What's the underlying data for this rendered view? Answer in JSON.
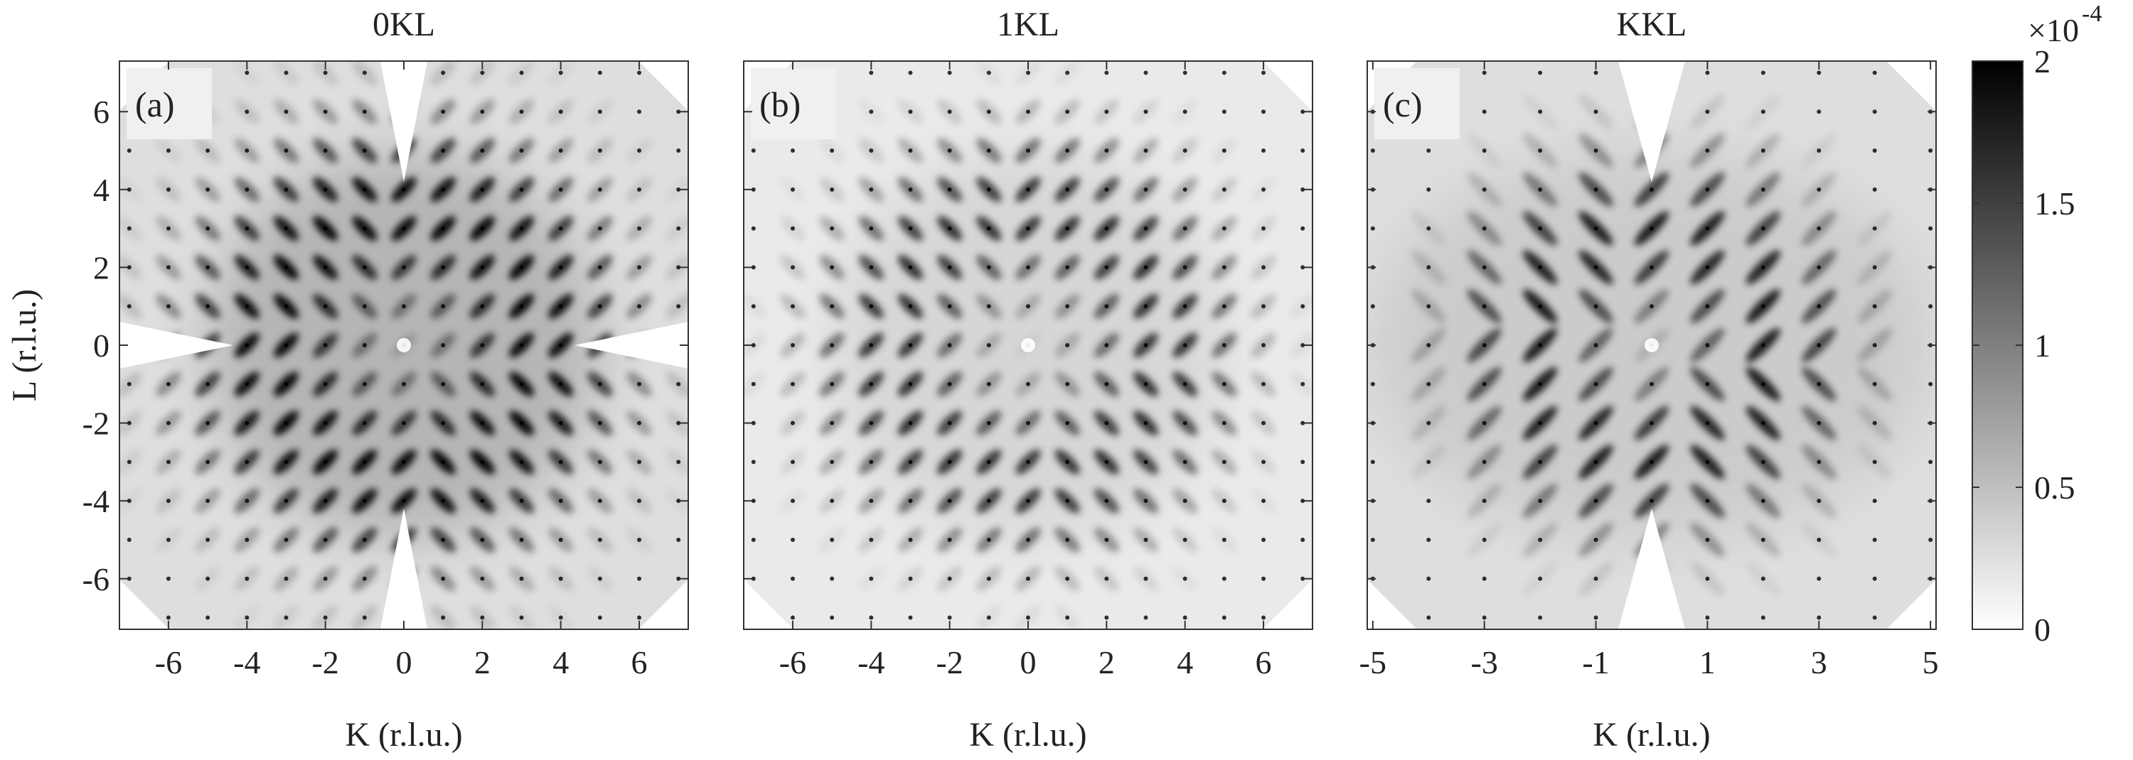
{
  "chart_data": [
    {
      "type": "heatmap",
      "title": "0KL",
      "panel_label": "(a)",
      "xlabel": "K (r.l.u.)",
      "ylabel": "L (r.l.u.)",
      "xlim": [
        -7.25,
        7.25
      ],
      "xticks": [
        -6,
        -4,
        -2,
        0,
        2,
        4,
        6
      ],
      "ylim": [
        -7.3,
        7.3
      ],
      "yticks": [
        -6,
        -4,
        -2,
        0,
        2,
        4,
        6
      ]
    },
    {
      "type": "heatmap",
      "title": "1KL",
      "panel_label": "(b)",
      "xlabel": "K (r.l.u.)",
      "xlim": [
        -7.25,
        7.25
      ],
      "xticks": [
        -6,
        -4,
        -2,
        0,
        2,
        4,
        6
      ],
      "ylim": [
        -7.3,
        7.3
      ]
    },
    {
      "type": "heatmap",
      "title": "KKL",
      "panel_label": "(c)",
      "xlabel": "K (r.l.u.)",
      "xlim": [
        -5.1,
        5.1
      ],
      "xticks": [
        -5,
        -3,
        -1,
        1,
        3,
        5
      ],
      "ylim": [
        -7.3,
        7.3
      ]
    }
  ],
  "colorbar": {
    "lim": [
      0,
      2
    ],
    "ticks": [
      0,
      0.5,
      1,
      1.5,
      2
    ],
    "scale_label": "×10",
    "scale_exponent": "-4"
  }
}
